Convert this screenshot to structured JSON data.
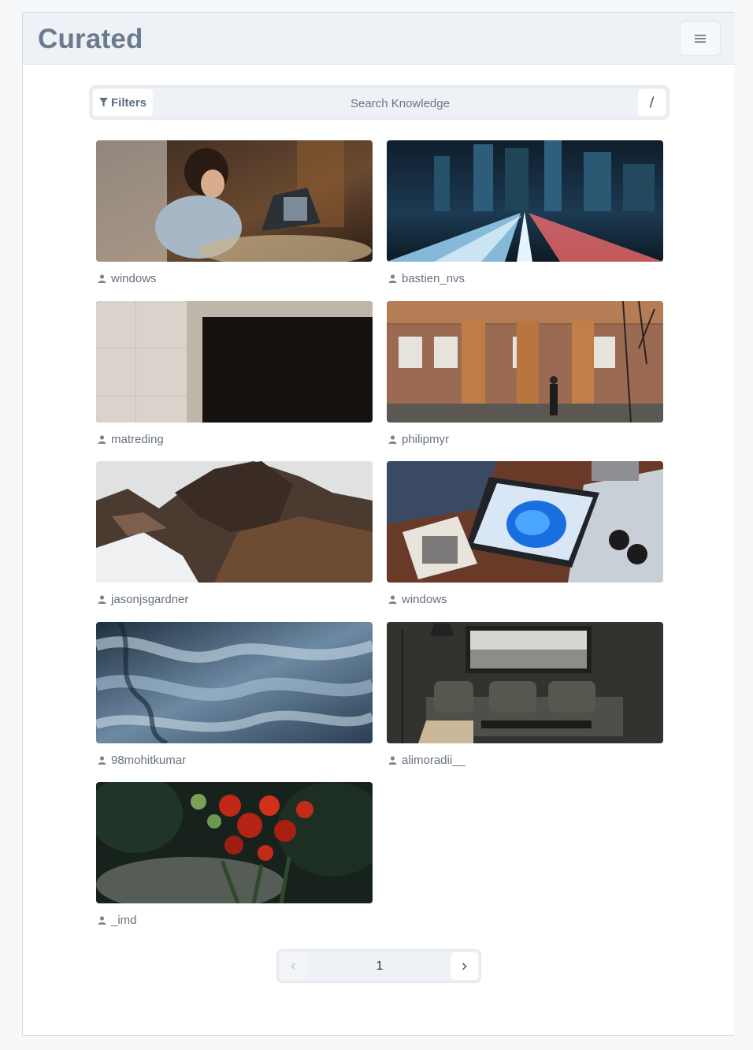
{
  "app": {
    "title": "Curated"
  },
  "header": {
    "menu_icon": "hamburger-icon"
  },
  "search": {
    "filters_label": "Filters",
    "filters_icon": "funnel-icon",
    "placeholder": "Search Knowledge",
    "shortcut_key": "/"
  },
  "photos": [
    {
      "author": "windows",
      "scene": "woman on video call with laptop"
    },
    {
      "author": "bastien_nvs",
      "scene": "city highway light trails at night"
    },
    {
      "author": "matreding",
      "scene": "beige building corner with dark shadow"
    },
    {
      "author": "philipmyr",
      "scene": "arched columns and person walking"
    },
    {
      "author": "jasonjsgardner",
      "scene": "rocky mountain with snow"
    },
    {
      "author": "windows",
      "scene": "tablet with blue bloom wallpaper on map"
    },
    {
      "author": "98mohitkumar",
      "scene": "aerial blue glacier texture"
    },
    {
      "author": "alimoradii__",
      "scene": "dark living room with sofa"
    },
    {
      "author": "_imd",
      "scene": "red flower bouquet"
    }
  ],
  "pagination": {
    "current_page": "1",
    "prev_icon": "chevron-left-icon",
    "next_icon": "chevron-right-icon"
  },
  "colors": {
    "header_bg": "#eef1f5",
    "title": "#6b7b8f",
    "text_muted": "#66717e"
  }
}
